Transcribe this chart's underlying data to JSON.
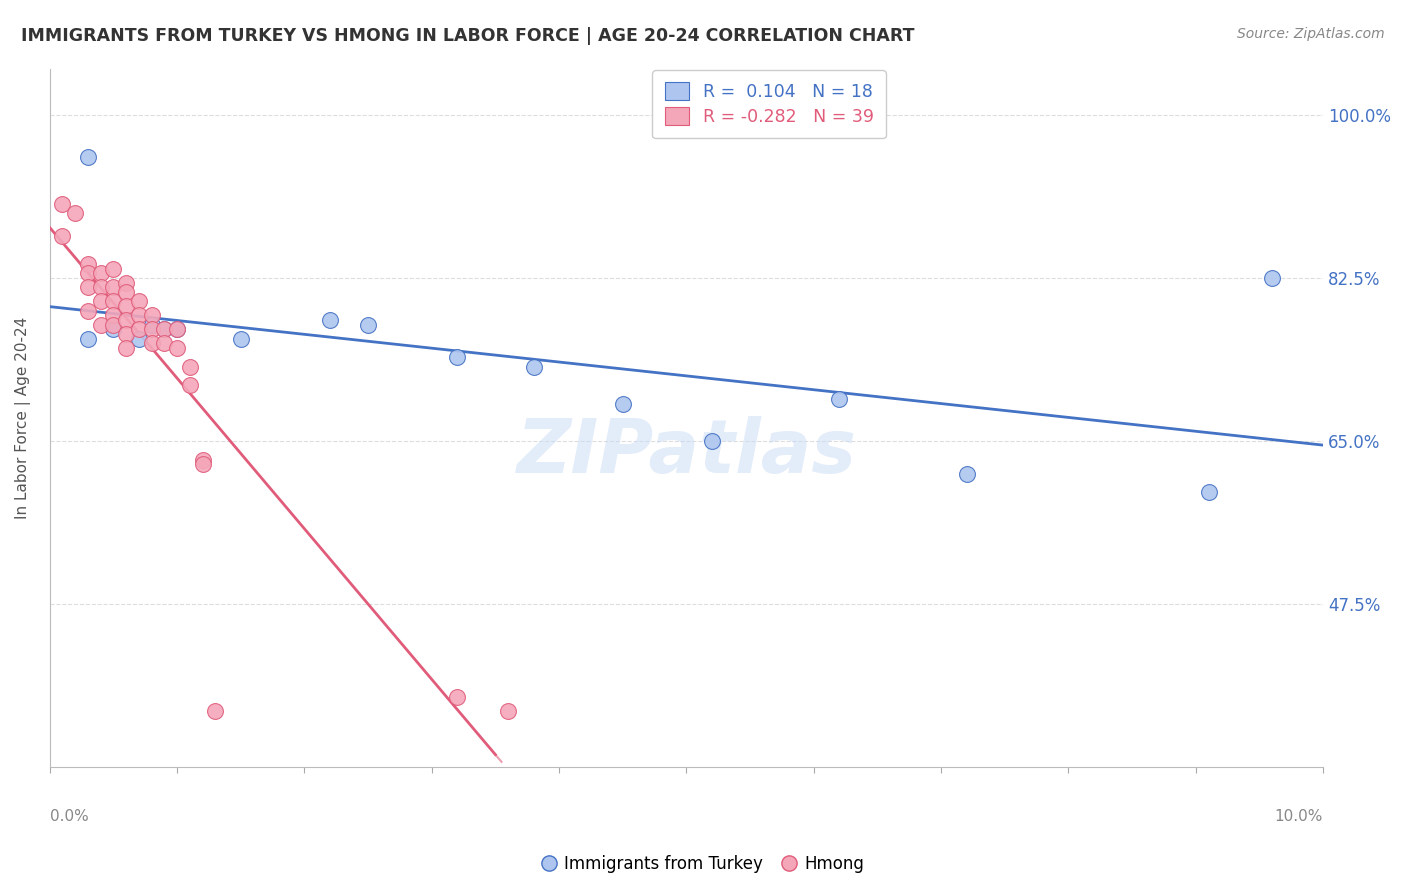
{
  "title": "IMMIGRANTS FROM TURKEY VS HMONG IN LABOR FORCE | AGE 20-24 CORRELATION CHART",
  "source": "Source: ZipAtlas.com",
  "ylabel": "In Labor Force | Age 20-24",
  "yticks": [
    47.5,
    65.0,
    82.5,
    100.0
  ],
  "xlim": [
    0.0,
    0.1
  ],
  "ylim": [
    0.3,
    1.05
  ],
  "legend_turkey": {
    "R": "0.104",
    "N": "18",
    "color": "#aec6ef",
    "line_color": "#4472C4"
  },
  "legend_hmong": {
    "R": "-0.282",
    "N": "39",
    "color": "#f4a7b9",
    "line_color": "#E05C7A"
  },
  "turkey_x": [
    0.003,
    0.003,
    0.005,
    0.007,
    0.008,
    0.009,
    0.01,
    0.015,
    0.022,
    0.025,
    0.032,
    0.038,
    0.045,
    0.052,
    0.062,
    0.072,
    0.091,
    0.096
  ],
  "turkey_y": [
    0.955,
    0.76,
    0.77,
    0.76,
    0.775,
    0.77,
    0.77,
    0.76,
    0.78,
    0.775,
    0.74,
    0.73,
    0.69,
    0.65,
    0.695,
    0.615,
    0.595,
    0.825
  ],
  "hmong_x": [
    0.001,
    0.001,
    0.002,
    0.003,
    0.003,
    0.003,
    0.003,
    0.004,
    0.004,
    0.004,
    0.004,
    0.005,
    0.005,
    0.005,
    0.005,
    0.005,
    0.006,
    0.006,
    0.006,
    0.006,
    0.006,
    0.006,
    0.007,
    0.007,
    0.007,
    0.008,
    0.008,
    0.008,
    0.009,
    0.009,
    0.01,
    0.01,
    0.011,
    0.011,
    0.012,
    0.012,
    0.013,
    0.032,
    0.036
  ],
  "hmong_y": [
    0.905,
    0.87,
    0.895,
    0.84,
    0.83,
    0.815,
    0.79,
    0.83,
    0.815,
    0.8,
    0.775,
    0.835,
    0.815,
    0.8,
    0.785,
    0.775,
    0.82,
    0.81,
    0.795,
    0.78,
    0.765,
    0.75,
    0.8,
    0.785,
    0.77,
    0.785,
    0.77,
    0.755,
    0.77,
    0.755,
    0.77,
    0.75,
    0.73,
    0.71,
    0.63,
    0.625,
    0.36,
    0.375,
    0.36
  ],
  "watermark": "ZIPatlas",
  "background_color": "#ffffff",
  "grid_color": "#dddddd",
  "title_color": "#333333",
  "tick_label_color": "#4472C4"
}
